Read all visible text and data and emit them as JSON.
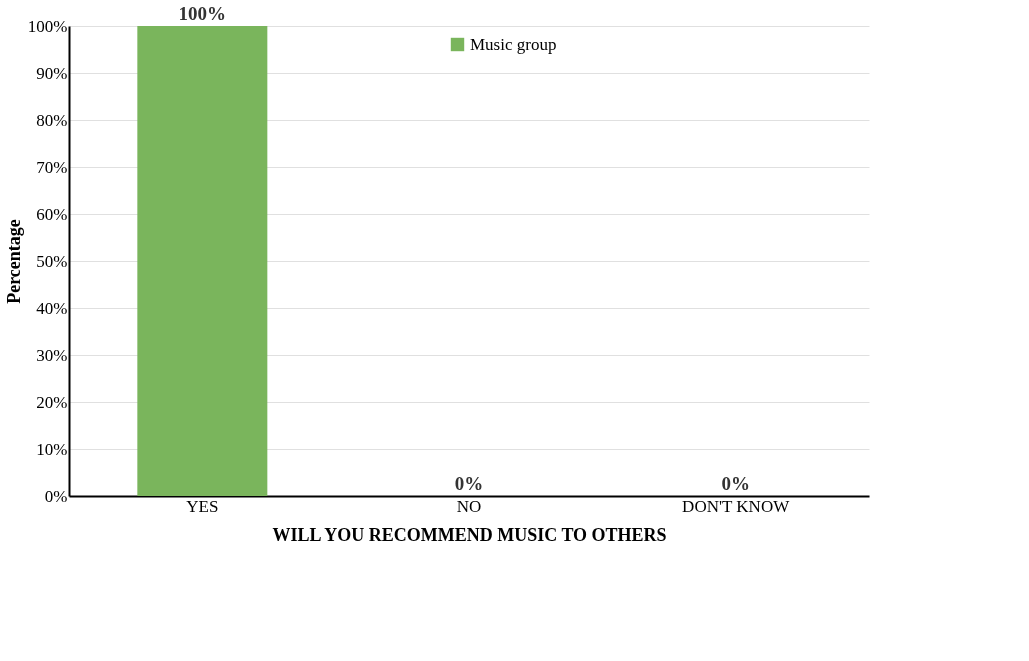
{
  "chart_data": {
    "type": "bar",
    "xlabel": "WILL YOU RECOMMEND MUSIC TO OTHERS",
    "ylabel": "Percentage",
    "categories": [
      "YES",
      "NO",
      "DON'T KNOW"
    ],
    "series": [
      {
        "name": "Music group",
        "color": "#7ab55c",
        "values": [
          100,
          0,
          0
        ],
        "value_labels": [
          "100%",
          "0%",
          "0%"
        ]
      }
    ],
    "ylim": [
      0,
      100
    ],
    "yticks": [
      {
        "value": 0,
        "label": "0%"
      },
      {
        "value": 10,
        "label": "10%"
      },
      {
        "value": 20,
        "label": "20%"
      },
      {
        "value": 30,
        "label": "30%"
      },
      {
        "value": 40,
        "label": "40%"
      },
      {
        "value": 50,
        "label": "50%"
      },
      {
        "value": 60,
        "label": "60%"
      },
      {
        "value": 70,
        "label": "70%"
      },
      {
        "value": 80,
        "label": "80%"
      },
      {
        "value": 90,
        "label": "90%"
      },
      {
        "value": 100,
        "label": "100%"
      }
    ],
    "grid": "y",
    "legend": "top"
  }
}
